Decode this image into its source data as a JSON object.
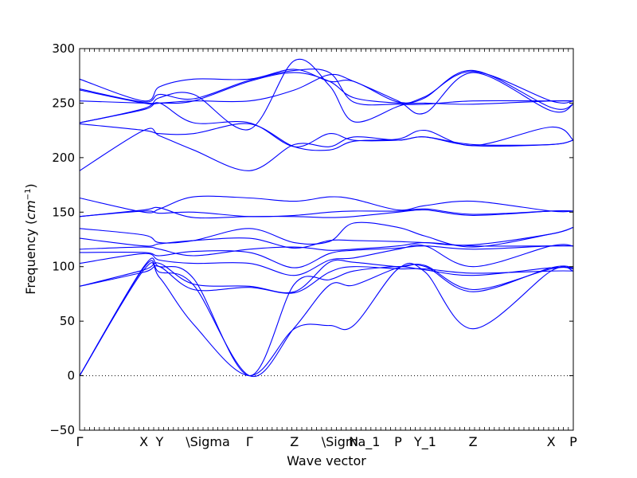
{
  "chart_data": {
    "type": "line",
    "xlabel": "Wave vector",
    "ylabel": "Frequency",
    "ylabel_unit": "cm",
    "ylabel_unit_exp": "−1",
    "ylim": [
      -50,
      300
    ],
    "yticks": [
      -50,
      0,
      50,
      100,
      150,
      200,
      250,
      300
    ],
    "xlim": [
      0,
      1
    ],
    "xticks": [
      {
        "label": "Γ",
        "x": 0.0
      },
      {
        "label": "X",
        "x": 0.13
      },
      {
        "label": "Y",
        "x": 0.162
      },
      {
        "label": "\\Sigma",
        "x": 0.231
      },
      {
        "label": "Γ",
        "x": 0.344
      },
      {
        "label": "Z",
        "x": 0.435
      },
      {
        "label": "\\Sigma_1",
        "x": 0.506
      },
      {
        "label": "N",
        "x": 0.555
      },
      {
        "label": "P",
        "x": 0.645
      },
      {
        "label": "Y_1",
        "x": 0.7
      },
      {
        "label": "Z",
        "x": 0.797
      },
      {
        "label": "X",
        "x": 0.955
      },
      {
        "label": "P",
        "x": 1.0
      }
    ],
    "zero_line": true,
    "line_color": "#0000ff",
    "series": [
      {
        "points": [
          [
            0,
            0
          ],
          [
            0.13,
            97
          ],
          [
            0.162,
            90
          ],
          [
            0.231,
            47
          ],
          [
            0.344,
            0
          ],
          [
            0.435,
            43
          ],
          [
            0.506,
            46
          ],
          [
            0.555,
            46
          ],
          [
            0.645,
            98
          ],
          [
            0.7,
            95
          ],
          [
            0.797,
            43
          ],
          [
            0.955,
            96
          ],
          [
            1,
            96
          ]
        ]
      },
      {
        "points": [
          [
            0,
            0
          ],
          [
            0.13,
            99
          ],
          [
            0.162,
            95
          ],
          [
            0.231,
            83
          ],
          [
            0.344,
            0
          ],
          [
            0.435,
            44
          ],
          [
            0.506,
            83
          ],
          [
            0.555,
            83
          ],
          [
            0.645,
            99
          ],
          [
            0.7,
            100
          ],
          [
            0.797,
            77
          ],
          [
            0.955,
            99
          ],
          [
            1,
            99
          ]
        ]
      },
      {
        "points": [
          [
            0,
            0
          ],
          [
            0.13,
            100
          ],
          [
            0.162,
            100
          ],
          [
            0.231,
            89
          ],
          [
            0.344,
            0
          ],
          [
            0.435,
            84
          ],
          [
            0.506,
            88
          ],
          [
            0.555,
            96
          ],
          [
            0.645,
            100
          ],
          [
            0.7,
            97
          ],
          [
            0.797,
            92
          ],
          [
            0.955,
            99
          ],
          [
            1,
            99
          ]
        ]
      },
      {
        "points": [
          [
            0,
            82
          ],
          [
            0.13,
            95
          ],
          [
            0.162,
            100
          ],
          [
            0.231,
            79
          ],
          [
            0.344,
            81
          ],
          [
            0.435,
            76
          ],
          [
            0.506,
            95
          ],
          [
            0.555,
            100
          ],
          [
            0.645,
            98
          ],
          [
            0.7,
            98
          ],
          [
            0.797,
            94
          ],
          [
            0.955,
            96
          ],
          [
            1,
            96
          ]
        ]
      },
      {
        "points": [
          [
            0,
            82
          ],
          [
            0.13,
            97
          ],
          [
            0.162,
            103
          ],
          [
            0.231,
            84
          ],
          [
            0.344,
            82
          ],
          [
            0.435,
            77
          ],
          [
            0.506,
            104
          ],
          [
            0.555,
            104
          ],
          [
            0.645,
            100
          ],
          [
            0.7,
            101
          ],
          [
            0.797,
            79
          ],
          [
            0.955,
            98
          ],
          [
            1,
            98
          ]
        ]
      },
      {
        "points": [
          [
            0,
            103
          ],
          [
            0.13,
            112
          ],
          [
            0.162,
            106
          ],
          [
            0.231,
            103
          ],
          [
            0.344,
            103
          ],
          [
            0.435,
            92
          ],
          [
            0.506,
            106
          ],
          [
            0.555,
            108
          ],
          [
            0.645,
            116
          ],
          [
            0.7,
            119
          ],
          [
            0.797,
            100
          ],
          [
            0.955,
            119
          ],
          [
            1,
            119
          ]
        ]
      },
      {
        "points": [
          [
            0,
            113
          ],
          [
            0.13,
            113
          ],
          [
            0.162,
            110
          ],
          [
            0.231,
            114
          ],
          [
            0.344,
            113
          ],
          [
            0.435,
            99
          ],
          [
            0.506,
            112
          ],
          [
            0.555,
            115
          ],
          [
            0.645,
            117
          ],
          [
            0.7,
            119
          ],
          [
            0.797,
            116
          ],
          [
            0.955,
            119
          ],
          [
            1,
            119
          ]
        ]
      },
      {
        "points": [
          [
            0,
            116
          ],
          [
            0.13,
            118
          ],
          [
            0.162,
            116
          ],
          [
            0.231,
            110
          ],
          [
            0.344,
            116
          ],
          [
            0.435,
            118
          ],
          [
            0.506,
            115
          ],
          [
            0.555,
            116
          ],
          [
            0.645,
            119
          ],
          [
            0.7,
            122
          ],
          [
            0.797,
            119
          ],
          [
            0.955,
            119
          ],
          [
            1,
            119
          ]
        ]
      },
      {
        "points": [
          [
            0,
            126
          ],
          [
            0.13,
            119
          ],
          [
            0.162,
            121
          ],
          [
            0.231,
            124
          ],
          [
            0.344,
            126
          ],
          [
            0.435,
            117
          ],
          [
            0.506,
            124
          ],
          [
            0.555,
            124
          ],
          [
            0.645,
            123
          ],
          [
            0.7,
            122
          ],
          [
            0.797,
            120
          ],
          [
            0.955,
            130
          ],
          [
            1,
            136
          ]
        ]
      },
      {
        "points": [
          [
            0,
            135
          ],
          [
            0.13,
            129
          ],
          [
            0.162,
            122
          ],
          [
            0.231,
            124
          ],
          [
            0.344,
            135
          ],
          [
            0.435,
            122
          ],
          [
            0.506,
            123
          ],
          [
            0.555,
            140
          ],
          [
            0.645,
            136
          ],
          [
            0.7,
            128
          ],
          [
            0.797,
            118
          ],
          [
            0.955,
            130
          ],
          [
            1,
            136
          ]
        ]
      },
      {
        "points": [
          [
            0,
            146
          ],
          [
            0.13,
            152
          ],
          [
            0.162,
            154
          ],
          [
            0.231,
            145
          ],
          [
            0.344,
            146
          ],
          [
            0.435,
            146
          ],
          [
            0.506,
            145
          ],
          [
            0.555,
            146
          ],
          [
            0.645,
            150
          ],
          [
            0.7,
            152
          ],
          [
            0.797,
            147
          ],
          [
            0.955,
            151
          ],
          [
            1,
            151
          ]
        ]
      },
      {
        "points": [
          [
            0,
            146
          ],
          [
            0.13,
            151
          ],
          [
            0.162,
            149
          ],
          [
            0.231,
            150
          ],
          [
            0.344,
            146
          ],
          [
            0.435,
            147
          ],
          [
            0.506,
            150
          ],
          [
            0.555,
            151
          ],
          [
            0.645,
            151
          ],
          [
            0.7,
            153
          ],
          [
            0.797,
            148
          ],
          [
            0.955,
            151
          ],
          [
            1,
            151
          ]
        ]
      },
      {
        "points": [
          [
            0,
            163
          ],
          [
            0.13,
            150
          ],
          [
            0.162,
            153
          ],
          [
            0.231,
            164
          ],
          [
            0.344,
            163
          ],
          [
            0.435,
            160
          ],
          [
            0.506,
            164
          ],
          [
            0.555,
            162
          ],
          [
            0.645,
            152
          ],
          [
            0.7,
            156
          ],
          [
            0.797,
            160
          ],
          [
            0.955,
            151
          ],
          [
            1,
            151
          ]
        ]
      },
      {
        "points": [
          [
            0,
            188
          ],
          [
            0.13,
            225
          ],
          [
            0.162,
            220
          ],
          [
            0.231,
            207
          ],
          [
            0.344,
            188
          ],
          [
            0.435,
            212
          ],
          [
            0.506,
            210
          ],
          [
            0.555,
            219
          ],
          [
            0.645,
            216
          ],
          [
            0.7,
            219
          ],
          [
            0.797,
            211
          ],
          [
            0.955,
            212
          ],
          [
            1,
            216
          ]
        ]
      },
      {
        "points": [
          [
            0,
            231
          ],
          [
            0.13,
            225
          ],
          [
            0.162,
            222
          ],
          [
            0.231,
            222
          ],
          [
            0.344,
            231
          ],
          [
            0.435,
            210
          ],
          [
            0.506,
            207
          ],
          [
            0.555,
            215
          ],
          [
            0.645,
            217
          ],
          [
            0.7,
            225
          ],
          [
            0.797,
            211
          ],
          [
            0.955,
            228
          ],
          [
            1,
            216
          ]
        ]
      },
      {
        "points": [
          [
            0,
            232
          ],
          [
            0.13,
            244
          ],
          [
            0.162,
            250
          ],
          [
            0.231,
            232
          ],
          [
            0.344,
            232
          ],
          [
            0.435,
            210
          ],
          [
            0.506,
            222
          ],
          [
            0.555,
            216
          ],
          [
            0.645,
            216
          ],
          [
            0.7,
            219
          ],
          [
            0.797,
            212
          ],
          [
            0.955,
            212
          ],
          [
            1,
            216
          ]
        ]
      },
      {
        "points": [
          [
            0,
            232
          ],
          [
            0.13,
            245
          ],
          [
            0.162,
            255
          ],
          [
            0.231,
            258
          ],
          [
            0.344,
            226
          ],
          [
            0.435,
            289
          ],
          [
            0.506,
            266
          ],
          [
            0.555,
            233
          ],
          [
            0.645,
            247
          ],
          [
            0.7,
            255
          ],
          [
            0.797,
            280
          ],
          [
            0.955,
            246
          ],
          [
            1,
            249
          ]
        ]
      },
      {
        "points": [
          [
            0,
            252
          ],
          [
            0.13,
            250
          ],
          [
            0.162,
            250
          ],
          [
            0.231,
            252
          ],
          [
            0.344,
            252
          ],
          [
            0.435,
            262
          ],
          [
            0.506,
            276
          ],
          [
            0.555,
            270
          ],
          [
            0.645,
            252
          ],
          [
            0.7,
            241
          ],
          [
            0.797,
            278
          ],
          [
            0.955,
            243
          ],
          [
            1,
            249
          ]
        ]
      },
      {
        "points": [
          [
            0,
            262
          ],
          [
            0.13,
            250
          ],
          [
            0.162,
            250
          ],
          [
            0.231,
            252
          ],
          [
            0.344,
            270
          ],
          [
            0.435,
            278
          ],
          [
            0.506,
            270
          ],
          [
            0.555,
            255
          ],
          [
            0.645,
            250
          ],
          [
            0.7,
            250
          ],
          [
            0.797,
            249
          ],
          [
            0.955,
            252
          ],
          [
            1,
            252
          ]
        ]
      },
      {
        "points": [
          [
            0,
            263
          ],
          [
            0.13,
            251
          ],
          [
            0.162,
            258
          ],
          [
            0.231,
            254
          ],
          [
            0.344,
            271
          ],
          [
            0.435,
            280
          ],
          [
            0.506,
            278
          ],
          [
            0.555,
            251
          ],
          [
            0.645,
            249
          ],
          [
            0.7,
            249
          ],
          [
            0.797,
            252
          ],
          [
            0.955,
            252
          ],
          [
            1,
            252
          ]
        ]
      },
      {
        "points": [
          [
            0,
            272
          ],
          [
            0.13,
            252
          ],
          [
            0.162,
            265
          ],
          [
            0.231,
            272
          ],
          [
            0.344,
            272
          ],
          [
            0.435,
            281
          ],
          [
            0.506,
            270
          ],
          [
            0.555,
            270
          ],
          [
            0.645,
            251
          ],
          [
            0.7,
            256
          ],
          [
            0.797,
            279
          ],
          [
            0.955,
            252
          ],
          [
            1,
            252
          ]
        ]
      }
    ]
  }
}
